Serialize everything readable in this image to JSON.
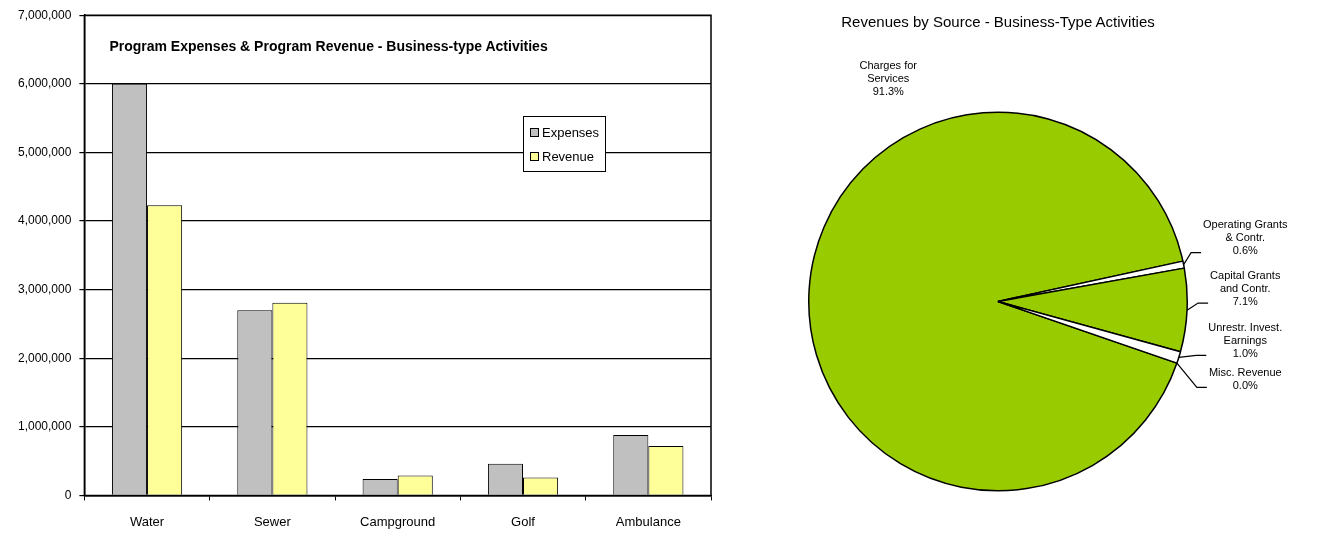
{
  "chart_data": [
    {
      "type": "bar",
      "title": "Program Expenses & Program Revenue - Business-type Activities",
      "categories": [
        "Water",
        "Sewer",
        "Campground",
        "Golf",
        "Ambulance"
      ],
      "series": [
        {
          "name": "Expenses",
          "color": "#c0c0c0",
          "values": [
            6000000,
            2700000,
            240000,
            460000,
            880000
          ]
        },
        {
          "name": "Revenue",
          "color": "#ffff99",
          "values": [
            4230000,
            2810000,
            290000,
            260000,
            720000
          ]
        }
      ],
      "ylim": [
        0,
        7000000
      ],
      "yticks": [
        {
          "value": 0,
          "label": "0"
        },
        {
          "value": 1000000,
          "label": "1,000,000"
        },
        {
          "value": 2000000,
          "label": "2,000,000"
        },
        {
          "value": 3000000,
          "label": "3,000,000"
        },
        {
          "value": 4000000,
          "label": "4,000,000"
        },
        {
          "value": 5000000,
          "label": "5,000,000"
        },
        {
          "value": 6000000,
          "label": "6,000,000"
        },
        {
          "value": 7000000,
          "label": "7,000,000"
        }
      ],
      "grid": "y",
      "legend": "right"
    },
    {
      "type": "pie",
      "title": "Revenues by Source - Business-Type Activities",
      "categories": [
        "Charges for Services",
        "Operating Grants & Contr.",
        "Capital Grants and Contr.",
        "Unrestr. Invest. Earnings",
        "Misc. Revenue"
      ],
      "values": [
        91.3,
        0.6,
        7.1,
        1.0,
        0.0
      ],
      "value_labels": [
        "91.3%",
        "0.6%",
        "7.1%",
        "1.0%",
        "0.0%"
      ],
      "colors": [
        "#99cc00",
        "#ffffff",
        "#99cc00",
        "#ffffff",
        "#ffffff"
      ]
    }
  ]
}
